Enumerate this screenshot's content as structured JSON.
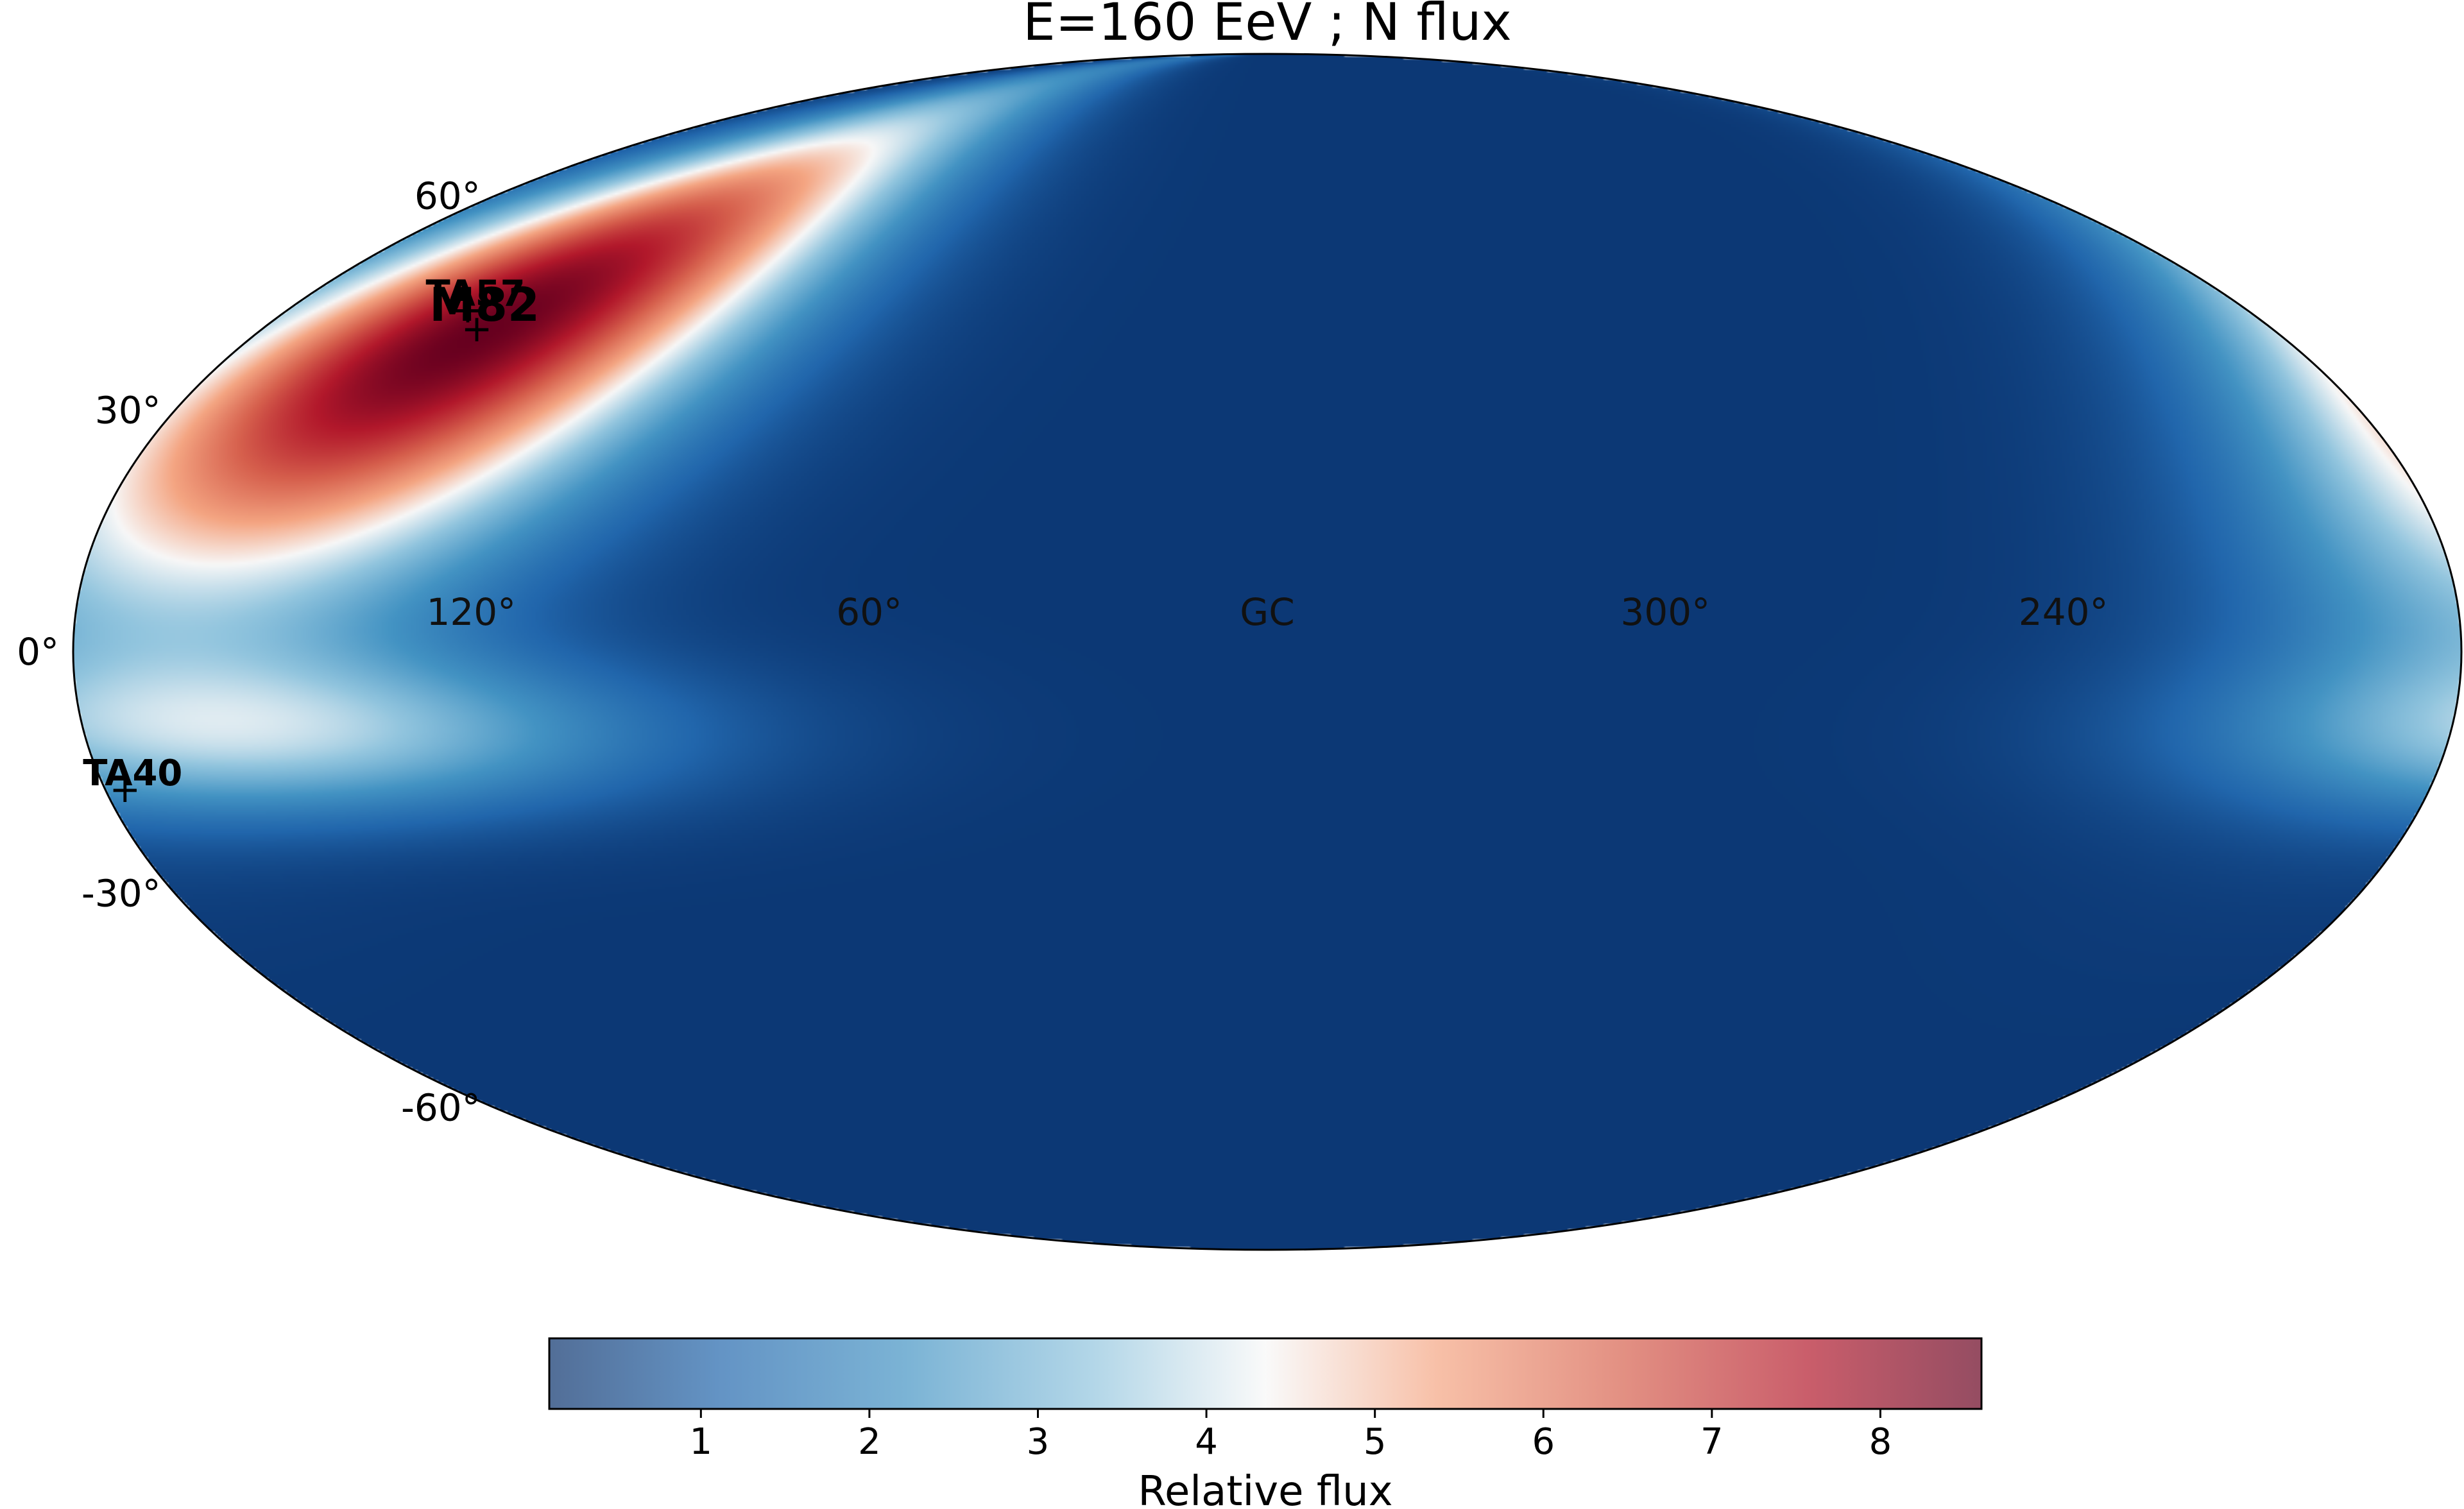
{
  "chart_data": {
    "type": "heatmap",
    "projection": "mollweide",
    "title": "E=160 EeV ; N flux",
    "colormap": "RdBu_r",
    "lon_tick_labels": [
      "120°",
      "60°",
      "GC",
      "300°",
      "240°"
    ],
    "lon_tick_values": [
      120,
      60,
      0,
      300,
      240
    ],
    "lat_tick_labels": [
      "60°",
      "30°",
      "0°",
      "-30°",
      "-60°"
    ],
    "lat_tick_values": [
      60,
      30,
      0,
      -30,
      -60
    ],
    "flux_blobs": [
      {
        "name": "M82 hotspot",
        "lon": 140,
        "lat": 40,
        "peak": 8.6,
        "spread_lon": 38,
        "spread_lat": 20,
        "tilt": 0.45
      },
      {
        "name": "southern band",
        "lon": 150,
        "lat": -10,
        "peak": 3.2,
        "spread_lon": 40,
        "spread_lat": 7,
        "tilt": 0.0
      }
    ],
    "background_flux": 0.25,
    "sources": [
      {
        "name": "TA57",
        "lon": 146.7,
        "lat": 43.2
      },
      {
        "name": "M82",
        "lon": 141.4,
        "lat": 40.6
      },
      {
        "name": "TA40",
        "lon": 177.0,
        "lat": -17.0
      }
    ],
    "colorbar": {
      "label": "Relative flux",
      "min": 0.1,
      "max": 8.6,
      "ticks": [
        1,
        2,
        3,
        4,
        5,
        6,
        7,
        8
      ],
      "tick_labels": [
        "1",
        "2",
        "3",
        "4",
        "5",
        "6",
        "7",
        "8"
      ]
    }
  }
}
